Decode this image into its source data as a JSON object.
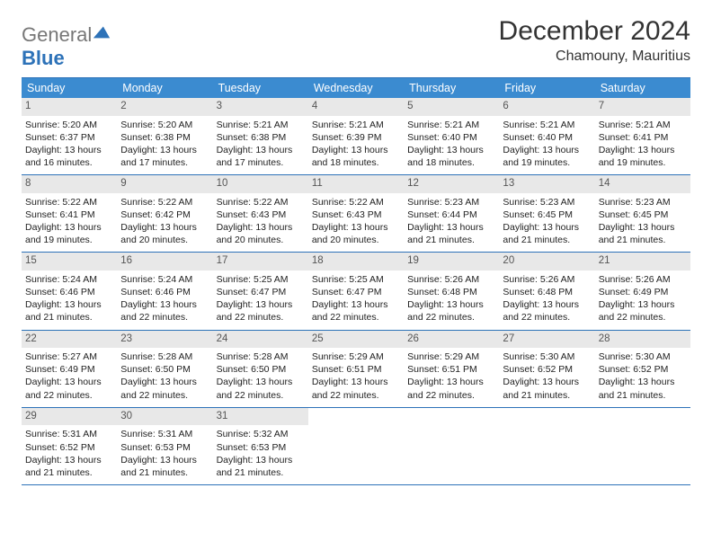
{
  "logo": {
    "part1": "General",
    "part2": "Blue"
  },
  "title": "December 2024",
  "location": "Chamouny, Mauritius",
  "colors": {
    "header_bg": "#3b8bd0",
    "header_text": "#ffffff",
    "border": "#2d72b8",
    "daynum_bg": "#e8e8e8",
    "daynum_text": "#555555",
    "body_text": "#222222"
  },
  "weekdays": [
    "Sunday",
    "Monday",
    "Tuesday",
    "Wednesday",
    "Thursday",
    "Friday",
    "Saturday"
  ],
  "weeks": [
    [
      {
        "n": "1",
        "sr": "5:20 AM",
        "ss": "6:37 PM",
        "dl": "13 hours and 16 minutes."
      },
      {
        "n": "2",
        "sr": "5:20 AM",
        "ss": "6:38 PM",
        "dl": "13 hours and 17 minutes."
      },
      {
        "n": "3",
        "sr": "5:21 AM",
        "ss": "6:38 PM",
        "dl": "13 hours and 17 minutes."
      },
      {
        "n": "4",
        "sr": "5:21 AM",
        "ss": "6:39 PM",
        "dl": "13 hours and 18 minutes."
      },
      {
        "n": "5",
        "sr": "5:21 AM",
        "ss": "6:40 PM",
        "dl": "13 hours and 18 minutes."
      },
      {
        "n": "6",
        "sr": "5:21 AM",
        "ss": "6:40 PM",
        "dl": "13 hours and 19 minutes."
      },
      {
        "n": "7",
        "sr": "5:21 AM",
        "ss": "6:41 PM",
        "dl": "13 hours and 19 minutes."
      }
    ],
    [
      {
        "n": "8",
        "sr": "5:22 AM",
        "ss": "6:41 PM",
        "dl": "13 hours and 19 minutes."
      },
      {
        "n": "9",
        "sr": "5:22 AM",
        "ss": "6:42 PM",
        "dl": "13 hours and 20 minutes."
      },
      {
        "n": "10",
        "sr": "5:22 AM",
        "ss": "6:43 PM",
        "dl": "13 hours and 20 minutes."
      },
      {
        "n": "11",
        "sr": "5:22 AM",
        "ss": "6:43 PM",
        "dl": "13 hours and 20 minutes."
      },
      {
        "n": "12",
        "sr": "5:23 AM",
        "ss": "6:44 PM",
        "dl": "13 hours and 21 minutes."
      },
      {
        "n": "13",
        "sr": "5:23 AM",
        "ss": "6:45 PM",
        "dl": "13 hours and 21 minutes."
      },
      {
        "n": "14",
        "sr": "5:23 AM",
        "ss": "6:45 PM",
        "dl": "13 hours and 21 minutes."
      }
    ],
    [
      {
        "n": "15",
        "sr": "5:24 AM",
        "ss": "6:46 PM",
        "dl": "13 hours and 21 minutes."
      },
      {
        "n": "16",
        "sr": "5:24 AM",
        "ss": "6:46 PM",
        "dl": "13 hours and 22 minutes."
      },
      {
        "n": "17",
        "sr": "5:25 AM",
        "ss": "6:47 PM",
        "dl": "13 hours and 22 minutes."
      },
      {
        "n": "18",
        "sr": "5:25 AM",
        "ss": "6:47 PM",
        "dl": "13 hours and 22 minutes."
      },
      {
        "n": "19",
        "sr": "5:26 AM",
        "ss": "6:48 PM",
        "dl": "13 hours and 22 minutes."
      },
      {
        "n": "20",
        "sr": "5:26 AM",
        "ss": "6:48 PM",
        "dl": "13 hours and 22 minutes."
      },
      {
        "n": "21",
        "sr": "5:26 AM",
        "ss": "6:49 PM",
        "dl": "13 hours and 22 minutes."
      }
    ],
    [
      {
        "n": "22",
        "sr": "5:27 AM",
        "ss": "6:49 PM",
        "dl": "13 hours and 22 minutes."
      },
      {
        "n": "23",
        "sr": "5:28 AM",
        "ss": "6:50 PM",
        "dl": "13 hours and 22 minutes."
      },
      {
        "n": "24",
        "sr": "5:28 AM",
        "ss": "6:50 PM",
        "dl": "13 hours and 22 minutes."
      },
      {
        "n": "25",
        "sr": "5:29 AM",
        "ss": "6:51 PM",
        "dl": "13 hours and 22 minutes."
      },
      {
        "n": "26",
        "sr": "5:29 AM",
        "ss": "6:51 PM",
        "dl": "13 hours and 22 minutes."
      },
      {
        "n": "27",
        "sr": "5:30 AM",
        "ss": "6:52 PM",
        "dl": "13 hours and 21 minutes."
      },
      {
        "n": "28",
        "sr": "5:30 AM",
        "ss": "6:52 PM",
        "dl": "13 hours and 21 minutes."
      }
    ],
    [
      {
        "n": "29",
        "sr": "5:31 AM",
        "ss": "6:52 PM",
        "dl": "13 hours and 21 minutes."
      },
      {
        "n": "30",
        "sr": "5:31 AM",
        "ss": "6:53 PM",
        "dl": "13 hours and 21 minutes."
      },
      {
        "n": "31",
        "sr": "5:32 AM",
        "ss": "6:53 PM",
        "dl": "13 hours and 21 minutes."
      },
      null,
      null,
      null,
      null
    ]
  ],
  "labels": {
    "sunrise": "Sunrise:",
    "sunset": "Sunset:",
    "daylight": "Daylight:"
  }
}
